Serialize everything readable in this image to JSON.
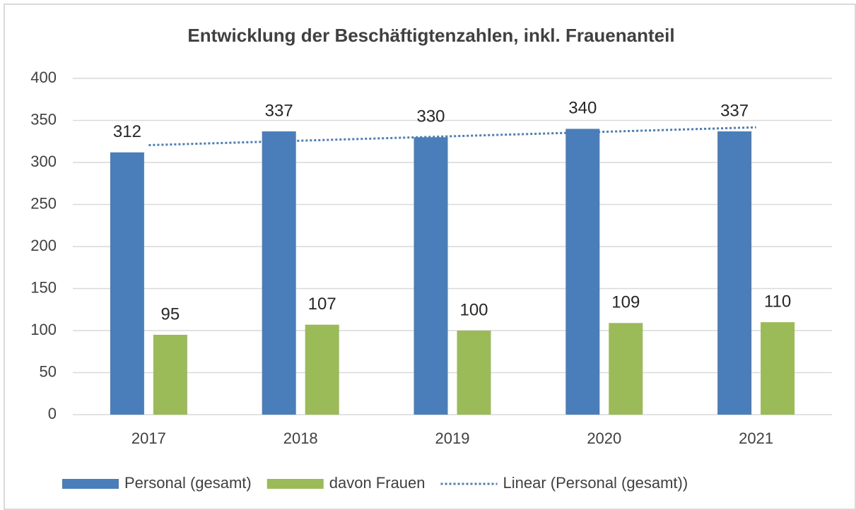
{
  "chart_data": {
    "type": "bar",
    "title": "Entwicklung der Beschäftigtenzahlen, inkl. Frauenanteil",
    "categories": [
      "2017",
      "2018",
      "2019",
      "2020",
      "2021"
    ],
    "series": [
      {
        "name": "Personal (gesamt)",
        "color": "#4a7ebb",
        "values": [
          312,
          337,
          330,
          340,
          337
        ]
      },
      {
        "name": "davon Frauen",
        "color": "#9bbb59",
        "values": [
          95,
          107,
          100,
          109,
          110
        ]
      },
      {
        "name": "Linear (Personal (gesamt))",
        "color": "#4a7ebb",
        "type": "trendline",
        "values": [
          320.6,
          325.9,
          331.2,
          336.5,
          341.8
        ]
      }
    ],
    "ylim": [
      0,
      400
    ],
    "yticks": [
      0,
      50,
      100,
      150,
      200,
      250,
      300,
      350,
      400
    ],
    "grid": true,
    "legend": "bottom"
  }
}
